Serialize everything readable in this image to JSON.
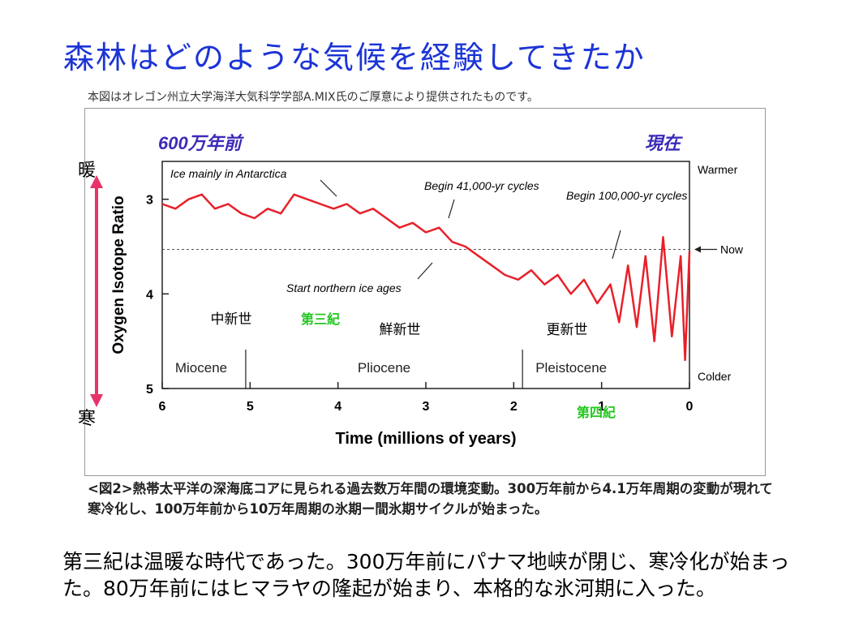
{
  "slide": {
    "title": "森林はどのような気候を経験してきたか",
    "credit": "本図はオレゴン州立大学海洋大気科学学部A.MIX氏のご厚意により提供されたものです。",
    "warm_label": "暖",
    "cold_label": "寒",
    "caption": "<図2>熱帯太平洋の深海底コアに見られる過去数万年間の環境変動。300万年前から4.1万年周期の変動が現れて寒冷化し、100万年前から10万年周期の氷期ー間氷期サイクルが始まった。",
    "body": "第三紀は温暖な時代であった。300万年前にパナマ地峡が閉じ、寒冷化が始まった。80万年前にはヒマラヤの隆起が始まり、本格的な氷河期に入った。"
  },
  "colors": {
    "title": "#1b34d6",
    "series": "#e8202a",
    "top_labels": "#3b2bb8",
    "period_green": "#22c81e",
    "arrow": "#e8336a"
  },
  "chart_data": {
    "type": "line",
    "top_left_label": "600万年前",
    "top_right_label": "現在",
    "xlabel": "Time (millions of years)",
    "ylabel": "Oxygen Isotope Ratio",
    "x_ticks": [
      "6",
      "5",
      "4",
      "3",
      "2",
      "1",
      "0"
    ],
    "y_ticks": [
      "3",
      "4",
      "5"
    ],
    "xlim": [
      6,
      0
    ],
    "ylim": [
      5,
      2.6
    ],
    "right_labels": {
      "warmer": "Warmer",
      "now": "Now",
      "colder": "Colder"
    },
    "now_value": 3.53,
    "epochs": [
      {
        "name": "Miocene",
        "from": 6,
        "to": 5.05,
        "jp": "中新世"
      },
      {
        "name": "Pliocene",
        "from": 5.05,
        "to": 1.9,
        "jp": "鮮新世"
      },
      {
        "name": "Pleistocene",
        "from": 1.9,
        "to": 0,
        "jp": "更新世"
      }
    ],
    "period_labels": [
      {
        "text": "第三紀",
        "x": 4.25
      },
      {
        "text": "第四紀",
        "x": 0.8
      }
    ],
    "annotations": [
      "Ice mainly in Antarctica",
      "Begin 41,000-yr cycles",
      "Begin 100,000-yr cycles",
      "Start northern ice ages"
    ],
    "series": [
      {
        "x": [
          6.0,
          5.85,
          5.7,
          5.55,
          5.4,
          5.25,
          5.1,
          4.95,
          4.8,
          4.65,
          4.5,
          4.35,
          4.2,
          4.05,
          3.9,
          3.75,
          3.6,
          3.45,
          3.3,
          3.15,
          3.0,
          2.85,
          2.7,
          2.55,
          2.4,
          2.25,
          2.1,
          1.95,
          1.8,
          1.65,
          1.5,
          1.35,
          1.2,
          1.05,
          0.9,
          0.8,
          0.7,
          0.6,
          0.5,
          0.4,
          0.3,
          0.2,
          0.1,
          0.05,
          0.0
        ],
        "y": [
          3.05,
          3.1,
          3.0,
          2.95,
          3.1,
          3.05,
          3.15,
          3.2,
          3.1,
          3.15,
          2.95,
          3.0,
          3.05,
          3.1,
          3.05,
          3.15,
          3.1,
          3.2,
          3.3,
          3.25,
          3.35,
          3.3,
          3.45,
          3.5,
          3.6,
          3.7,
          3.8,
          3.85,
          3.75,
          3.9,
          3.8,
          4.0,
          3.85,
          4.1,
          3.9,
          4.3,
          3.7,
          4.35,
          3.6,
          4.5,
          3.4,
          4.45,
          3.6,
          4.7,
          3.55
        ]
      }
    ]
  }
}
